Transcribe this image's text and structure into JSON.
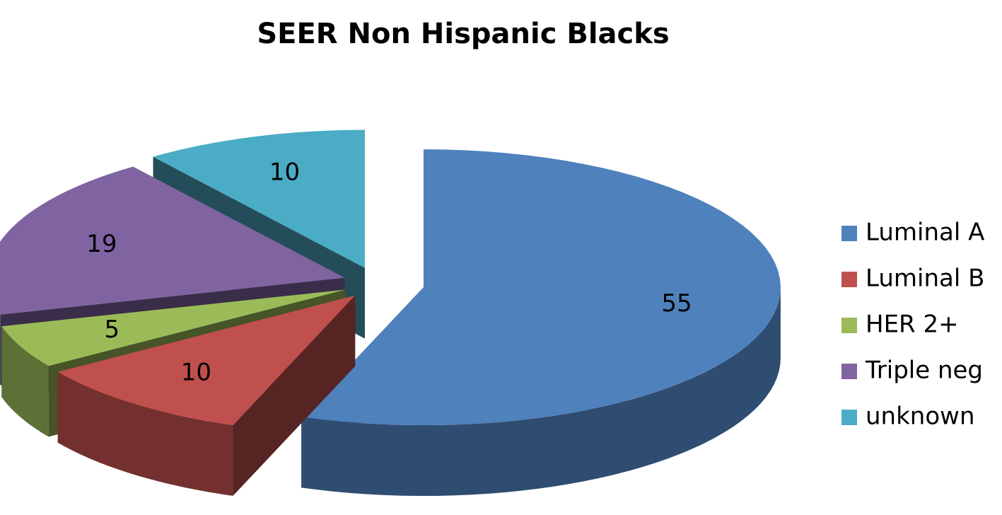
{
  "chart_data": {
    "type": "pie",
    "title": "SEER Non Hispanic Blacks",
    "categories": [
      "Luminal A",
      "Luminal B",
      "HER 2+",
      "Triple neg",
      "unknown"
    ],
    "values": [
      55,
      10,
      5,
      19,
      10
    ],
    "colors": [
      "#4f81bd",
      "#c0504d",
      "#9bbb59",
      "#8064a2",
      "#4bacc6"
    ],
    "legend": "right"
  }
}
